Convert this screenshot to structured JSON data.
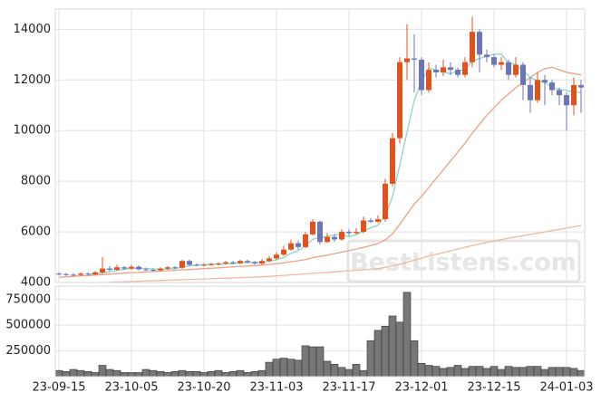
{
  "chart_data": [
    {
      "type": "candlestick",
      "categories": [
        "23-09-15",
        null,
        null,
        null,
        null,
        null,
        null,
        null,
        null,
        null,
        "23-10-05",
        null,
        null,
        null,
        null,
        null,
        null,
        null,
        null,
        null,
        "23-10-20",
        null,
        null,
        null,
        null,
        null,
        null,
        null,
        null,
        null,
        "23-11-03",
        null,
        null,
        null,
        null,
        null,
        null,
        null,
        null,
        null,
        "23-11-17",
        null,
        null,
        null,
        null,
        null,
        null,
        null,
        null,
        null,
        "23-12-01",
        null,
        null,
        null,
        null,
        null,
        null,
        null,
        null,
        null,
        "23-12-15",
        null,
        null,
        null,
        null,
        null,
        null,
        null,
        null,
        null,
        "24-01-03",
        null,
        null
      ],
      "open": [
        4350,
        4330,
        4310,
        4300,
        4350,
        4320,
        4400,
        4550,
        4500,
        4600,
        4550,
        4620,
        4520,
        4500,
        4480,
        4550,
        4600,
        4580,
        4850,
        4700,
        4680,
        4700,
        4720,
        4750,
        4800,
        4760,
        4850,
        4800,
        4750,
        4850,
        4950,
        5100,
        5300,
        5550,
        5400,
        5900,
        6400,
        5600,
        5800,
        5700,
        6000,
        5950,
        6000,
        6450,
        6400,
        6500,
        7900,
        9700,
        12700,
        12850,
        12800,
        11600,
        12400,
        12300,
        12500,
        12400,
        12200,
        12700,
        13900,
        13000,
        12900,
        12600,
        12700,
        12200,
        12600,
        11800,
        11200,
        12000,
        11900,
        11600,
        11400,
        11000,
        11800
      ],
      "high": [
        4400,
        4380,
        4360,
        4400,
        4400,
        4450,
        5000,
        4650,
        4700,
        4650,
        4700,
        4680,
        4580,
        4560,
        4600,
        4650,
        4650,
        4900,
        4900,
        4750,
        4760,
        4780,
        4800,
        4850,
        4850,
        4900,
        4900,
        4850,
        4920,
        5050,
        5200,
        5450,
        5700,
        5650,
        6000,
        6500,
        6450,
        5950,
        5900,
        6100,
        6100,
        6150,
        6600,
        6550,
        6650,
        8100,
        9900,
        12900,
        14200,
        13800,
        12900,
        12700,
        12600,
        12800,
        12700,
        12500,
        12900,
        14500,
        14000,
        13200,
        13000,
        12900,
        12800,
        12900,
        12700,
        12100,
        12300,
        12200,
        12000,
        11700,
        11500,
        12100,
        12000
      ],
      "low": [
        4280,
        4260,
        4250,
        4260,
        4270,
        4280,
        4350,
        4450,
        4460,
        4500,
        4500,
        4480,
        4460,
        4430,
        4440,
        4500,
        4530,
        4540,
        4650,
        4630,
        4640,
        4660,
        4680,
        4700,
        4710,
        4720,
        4750,
        4700,
        4700,
        4800,
        4900,
        5050,
        5250,
        5300,
        5350,
        5850,
        5500,
        5550,
        5600,
        5650,
        5850,
        5900,
        5950,
        6350,
        6350,
        6400,
        7800,
        9500,
        12000,
        11500,
        11400,
        11500,
        12100,
        12150,
        12200,
        12100,
        12100,
        12500,
        12300,
        12700,
        12500,
        12400,
        12000,
        12100,
        11200,
        10700,
        11100,
        11000,
        11400,
        11000,
        10000,
        10600,
        10700
      ],
      "close": [
        4330,
        4310,
        4300,
        4350,
        4320,
        4400,
        4550,
        4500,
        4600,
        4550,
        4620,
        4520,
        4500,
        4480,
        4550,
        4600,
        4580,
        4850,
        4700,
        4680,
        4700,
        4720,
        4750,
        4800,
        4760,
        4850,
        4800,
        4750,
        4850,
        4950,
        5100,
        5300,
        5550,
        5400,
        5900,
        6400,
        5600,
        5800,
        5700,
        6000,
        5950,
        6000,
        6450,
        6400,
        6500,
        7900,
        9700,
        12700,
        12850,
        12800,
        11600,
        12400,
        12300,
        12500,
        12400,
        12200,
        12700,
        13900,
        13000,
        12900,
        12600,
        12700,
        12200,
        12600,
        11800,
        11200,
        12000,
        11900,
        11600,
        11400,
        11000,
        11800,
        11700
      ],
      "up_color": "#e2521d",
      "down_color": "#6e74b6",
      "lines": [
        {
          "color": "#86d9c4",
          "values": [
            null,
            null,
            null,
            null,
            4322,
            4336,
            4384,
            4424,
            4474,
            4520,
            4564,
            4558,
            4558,
            4534,
            4534,
            4530,
            4542,
            4612,
            4656,
            4682,
            4702,
            4730,
            4710,
            4730,
            4746,
            4776,
            4792,
            4792,
            4802,
            4840,
            4890,
            4990,
            5150,
            5260,
            5450,
            5710,
            5770,
            5820,
            5880,
            5900,
            5810,
            5890,
            6020,
            6160,
            6260,
            6650,
            7390,
            8640,
            9930,
            11190,
            11930,
            12470,
            12390,
            12320,
            12240,
            12360,
            12420,
            12740,
            12840,
            12940,
            13020,
            13020,
            12680,
            12600,
            12380,
            12100,
            11960,
            11900,
            11700,
            11620,
            11580,
            11540,
            11500
          ]
        },
        {
          "color": "#eba285",
          "values": [
            4200,
            4220,
            4240,
            4260,
            4270,
            4290,
            4310,
            4330,
            4350,
            4370,
            4390,
            4400,
            4420,
            4430,
            4450,
            4460,
            4480,
            4500,
            4510,
            4530,
            4550,
            4560,
            4580,
            4600,
            4620,
            4640,
            4650,
            4670,
            4690,
            4710,
            4740,
            4780,
            4820,
            4860,
            4910,
            4980,
            5030,
            5080,
            5140,
            5200,
            5260,
            5320,
            5390,
            5460,
            5540,
            5680,
            5920,
            6300,
            6700,
            7100,
            7400,
            7750,
            8100,
            8450,
            8800,
            9150,
            9500,
            9900,
            10250,
            10600,
            10900,
            11200,
            11450,
            11700,
            11900,
            12100,
            12300,
            12450,
            12500,
            12400,
            12300,
            12250,
            12200
          ]
        },
        {
          "color": "#efb9a0",
          "values": [
            null,
            null,
            null,
            null,
            null,
            null,
            null,
            4010,
            4020,
            4030,
            4040,
            4050,
            4060,
            4070,
            4080,
            4090,
            4100,
            4110,
            4120,
            4130,
            4140,
            4150,
            4160,
            4170,
            4180,
            4190,
            4200,
            4210,
            4220,
            4240,
            4260,
            4280,
            4300,
            4320,
            4340,
            4360,
            4380,
            4400,
            4420,
            4440,
            4460,
            4480,
            4500,
            4520,
            4550,
            4600,
            4650,
            4720,
            4800,
            4880,
            4960,
            5040,
            5110,
            5180,
            5250,
            5320,
            5390,
            5460,
            5520,
            5580,
            5640,
            5700,
            5750,
            5800,
            5850,
            5900,
            5950,
            6000,
            6050,
            6100,
            6150,
            6200,
            6250
          ]
        }
      ],
      "ylim": [
        4000,
        14800
      ],
      "yticks": [
        4000,
        6000,
        8000,
        10000,
        12000,
        14000
      ],
      "grid": true,
      "watermark": "BestListens.com"
    },
    {
      "type": "bar",
      "values": [
        60000,
        50000,
        70000,
        60000,
        50000,
        40000,
        110000,
        70000,
        60000,
        40000,
        40000,
        40000,
        70000,
        60000,
        50000,
        40000,
        50000,
        60000,
        50000,
        50000,
        40000,
        50000,
        60000,
        40000,
        50000,
        60000,
        40000,
        50000,
        60000,
        140000,
        170000,
        180000,
        170000,
        160000,
        300000,
        290000,
        290000,
        150000,
        120000,
        90000,
        70000,
        120000,
        60000,
        350000,
        450000,
        490000,
        590000,
        530000,
        820000,
        350000,
        130000,
        110000,
        100000,
        80000,
        90000,
        110000,
        80000,
        100000,
        100000,
        80000,
        100000,
        70000,
        100000,
        90000,
        90000,
        100000,
        100000,
        70000,
        90000,
        90000,
        90000,
        80000,
        60000
      ],
      "color": "#777777",
      "ylim": [
        0,
        880000
      ],
      "yticks": [
        250000,
        500000,
        750000
      ],
      "grid": true
    }
  ]
}
